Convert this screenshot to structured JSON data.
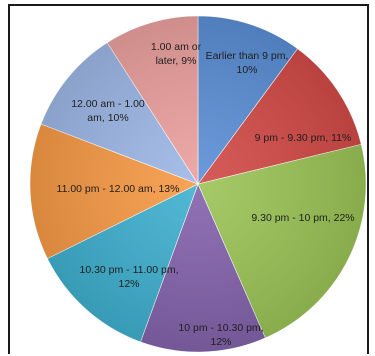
{
  "chart_data": {
    "type": "pie",
    "title": "",
    "start_angle_deg": 0,
    "direction": "clockwise",
    "slices": [
      {
        "category": "Earlier than 9 pm",
        "value": 10,
        "label_lines": [
          "Earlier than 9 pm,",
          "10%"
        ],
        "color": "#5b8fd6"
      },
      {
        "category": "9 pm - 9.30 pm",
        "value": 11,
        "label_lines": [
          "9 pm - 9.30 pm, 11%"
        ],
        "color": "#d24a47"
      },
      {
        "category": "9.30 pm - 10 pm",
        "value": 22,
        "label_lines": [
          "9.30 pm - 10 pm, 22%"
        ],
        "color": "#9bc456"
      },
      {
        "category": "10 pm - 10.30 pm",
        "value": 12,
        "label_lines": [
          "10 pm - 10.30 pm,",
          "12%"
        ],
        "color": "#8463ac"
      },
      {
        "category": "10.30 pm - 11.00 pm",
        "value": 12,
        "label_lines": [
          "10.30 pm - 11.00 pm,",
          "12%"
        ],
        "color": "#3fb0cf"
      },
      {
        "category": "11.00 pm - 12.00 am",
        "value": 13,
        "label_lines": [
          "11.00 pm - 12.00 am, 13%"
        ],
        "color": "#f79a46"
      },
      {
        "category": "12.00 am - 1.00 am",
        "value": 10,
        "label_lines": [
          "12.00 am - 1.00",
          "am, 10%"
        ],
        "color": "#9db8e6"
      },
      {
        "category": "1.00 am or later",
        "value": 9,
        "label_lines": [
          "1.00 am or",
          "later, 9%"
        ],
        "color": "#eba09e"
      }
    ]
  }
}
